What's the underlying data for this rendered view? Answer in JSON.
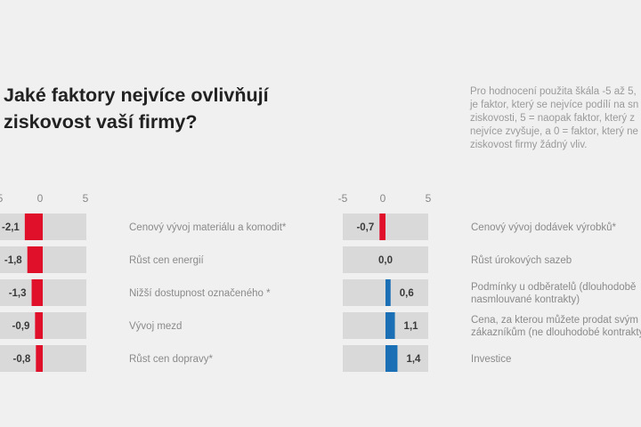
{
  "title_lines": [
    "Jaké faktory nejvíce ovlivňují",
    "ziskovost vaší firmy?"
  ],
  "note_lines": [
    "Pro hodnocení použita škála -5 až 5,",
    "je faktor, který se nejvíce podílí na sn",
    "ziskovosti, 5 = naopak faktor, který z",
    "nejvíce zvyšuje, a 0 = faktor, který ne",
    "ziskovost firmy žádný vliv."
  ],
  "colors": {
    "negative": "#e0102b",
    "positive": "#1a6fb5",
    "track": "#d9d9d9"
  },
  "chart_data": [
    {
      "type": "bar",
      "orientation": "horizontal",
      "xlim": [
        -5,
        5
      ],
      "ticks": [
        "5",
        "0",
        "5"
      ],
      "categories": [
        "Cenový vývoj materiálu a komodit*",
        "Růst cen energií",
        "Nižší dostupnost označeného *",
        "Vývoj mezd",
        "Růst cen dopravy*"
      ],
      "category_lines": [
        [
          "Cenový vývoj materiálu a komodit*"
        ],
        [
          "Růst cen energií"
        ],
        [
          "Nižší dostupnost označeného *"
        ],
        [
          "Vývoj mezd"
        ],
        [
          "Růst cen dopravy*"
        ]
      ],
      "values": [
        -2.1,
        -1.8,
        -1.3,
        -0.9,
        -0.8
      ],
      "value_labels": [
        "-2,1",
        "-1,8",
        "-1,3",
        "-0,9",
        "-0,8"
      ]
    },
    {
      "type": "bar",
      "orientation": "horizontal",
      "xlim": [
        -5,
        5
      ],
      "ticks": [
        "-5",
        "0",
        "5"
      ],
      "categories": [
        "Cenový vývoj dodávek výrobků*",
        "Růst úrokových sazeb",
        "Podmínky u odběratelů (dlouhodobě nasmlouvané kontrakty)",
        "Cena, za kterou můžete prodat svým zákazníkům (ne dlouhodobé kontrakty)",
        "Investice"
      ],
      "category_lines": [
        [
          "Cenový vývoj dodávek výrobků*"
        ],
        [
          "Růst úrokových sazeb"
        ],
        [
          "Podmínky u odběratelů (dlouhodobě",
          "nasmlouvané kontrakty)"
        ],
        [
          "Cena, za kterou můžete prodat svým",
          "zákazníkům (ne dlouhodobé kontrakty)"
        ],
        [
          "Investice"
        ]
      ],
      "values": [
        -0.7,
        0.0,
        0.6,
        1.1,
        1.4
      ],
      "value_labels": [
        "-0,7",
        "0,0",
        "0,6",
        "1,1",
        "1,4"
      ]
    }
  ]
}
